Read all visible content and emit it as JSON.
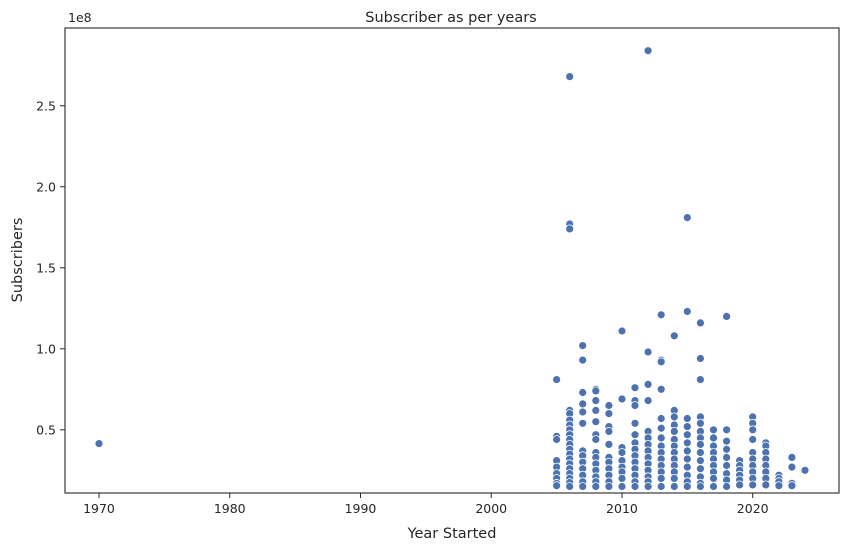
{
  "chart_data": {
    "type": "scatter",
    "title": "Subscriber as per years",
    "xlabel": "Year Started",
    "ylabel": "Subscribers",
    "y_offset_label": "1e8",
    "xlim": [
      1967.4,
      2026.6
    ],
    "ylim": [
      11000000,
      298000000
    ],
    "x_ticks": [
      1970,
      1980,
      1990,
      2000,
      2010,
      2020
    ],
    "y_ticks": [
      50000000,
      100000000,
      150000000,
      200000000,
      250000000
    ],
    "y_tick_labels": [
      "0.5",
      "1.0",
      "1.5",
      "2.0",
      "2.5"
    ],
    "grid": false,
    "marker_color": "#4c72b0",
    "marker_edge_color": "#ffffff",
    "points": [
      [
        1970,
        41500000
      ],
      [
        2005,
        81000000
      ],
      [
        2005,
        46000000
      ],
      [
        2005,
        44000000
      ],
      [
        2005,
        31000000
      ],
      [
        2005,
        27000000
      ],
      [
        2005,
        23000000
      ],
      [
        2005,
        20000000
      ],
      [
        2005,
        17000000
      ],
      [
        2005,
        15500000
      ],
      [
        2006,
        268000000
      ],
      [
        2006,
        177000000
      ],
      [
        2006,
        174000000
      ],
      [
        2006,
        62000000
      ],
      [
        2006,
        60000000
      ],
      [
        2006,
        56000000
      ],
      [
        2006,
        53000000
      ],
      [
        2006,
        50000000
      ],
      [
        2006,
        47000000
      ],
      [
        2006,
        44000000
      ],
      [
        2006,
        41000000
      ],
      [
        2006,
        38000000
      ],
      [
        2006,
        35000000
      ],
      [
        2006,
        32000000
      ],
      [
        2006,
        29000000
      ],
      [
        2006,
        26000000
      ],
      [
        2006,
        23000000
      ],
      [
        2006,
        20000000
      ],
      [
        2006,
        17500000
      ],
      [
        2006,
        15000000
      ],
      [
        2007,
        102000000
      ],
      [
        2007,
        93000000
      ],
      [
        2007,
        73000000
      ],
      [
        2007,
        66000000
      ],
      [
        2007,
        61000000
      ],
      [
        2007,
        54000000
      ],
      [
        2007,
        37000000
      ],
      [
        2007,
        34000000
      ],
      [
        2007,
        30000000
      ],
      [
        2007,
        26000000
      ],
      [
        2007,
        22000000
      ],
      [
        2007,
        18000000
      ],
      [
        2007,
        15000000
      ],
      [
        2008,
        75000000
      ],
      [
        2008,
        74000000
      ],
      [
        2008,
        68000000
      ],
      [
        2008,
        62000000
      ],
      [
        2008,
        55000000
      ],
      [
        2008,
        47000000
      ],
      [
        2008,
        44000000
      ],
      [
        2008,
        36000000
      ],
      [
        2008,
        33000000
      ],
      [
        2008,
        29000000
      ],
      [
        2008,
        25000000
      ],
      [
        2008,
        21000000
      ],
      [
        2008,
        18000000
      ],
      [
        2008,
        15000000
      ],
      [
        2009,
        65000000
      ],
      [
        2009,
        60000000
      ],
      [
        2009,
        52000000
      ],
      [
        2009,
        49000000
      ],
      [
        2009,
        41000000
      ],
      [
        2009,
        33000000
      ],
      [
        2009,
        30000000
      ],
      [
        2009,
        26000000
      ],
      [
        2009,
        22000000
      ],
      [
        2009,
        18000000
      ],
      [
        2009,
        15000000
      ],
      [
        2010,
        111000000
      ],
      [
        2010,
        69000000
      ],
      [
        2010,
        39000000
      ],
      [
        2010,
        36000000
      ],
      [
        2010,
        31000000
      ],
      [
        2010,
        27000000
      ],
      [
        2010,
        24000000
      ],
      [
        2010,
        20000000
      ],
      [
        2010,
        15000000
      ],
      [
        2011,
        76000000
      ],
      [
        2011,
        68000000
      ],
      [
        2011,
        65000000
      ],
      [
        2011,
        54000000
      ],
      [
        2011,
        47000000
      ],
      [
        2011,
        42000000
      ],
      [
        2011,
        38000000
      ],
      [
        2011,
        34000000
      ],
      [
        2011,
        30000000
      ],
      [
        2011,
        26000000
      ],
      [
        2011,
        22000000
      ],
      [
        2011,
        18000000
      ],
      [
        2011,
        15000000
      ],
      [
        2012,
        284000000
      ],
      [
        2012,
        98000000
      ],
      [
        2012,
        78000000
      ],
      [
        2012,
        68000000
      ],
      [
        2012,
        49000000
      ],
      [
        2012,
        45000000
      ],
      [
        2012,
        41000000
      ],
      [
        2012,
        37000000
      ],
      [
        2012,
        33000000
      ],
      [
        2012,
        29000000
      ],
      [
        2012,
        25000000
      ],
      [
        2012,
        21000000
      ],
      [
        2012,
        18000000
      ],
      [
        2012,
        15000000
      ],
      [
        2013,
        121000000
      ],
      [
        2013,
        93000000
      ],
      [
        2013,
        92000000
      ],
      [
        2013,
        75000000
      ],
      [
        2013,
        57000000
      ],
      [
        2013,
        51000000
      ],
      [
        2013,
        45000000
      ],
      [
        2013,
        40000000
      ],
      [
        2013,
        36000000
      ],
      [
        2013,
        32000000
      ],
      [
        2013,
        28000000
      ],
      [
        2013,
        24000000
      ],
      [
        2013,
        20000000
      ],
      [
        2013,
        15000000
      ],
      [
        2014,
        108000000
      ],
      [
        2014,
        62000000
      ],
      [
        2014,
        58000000
      ],
      [
        2014,
        53000000
      ],
      [
        2014,
        49000000
      ],
      [
        2014,
        44000000
      ],
      [
        2014,
        40000000
      ],
      [
        2014,
        36000000
      ],
      [
        2014,
        32000000
      ],
      [
        2014,
        28000000
      ],
      [
        2014,
        24000000
      ],
      [
        2014,
        20000000
      ],
      [
        2014,
        15000000
      ],
      [
        2015,
        181000000
      ],
      [
        2015,
        123000000
      ],
      [
        2015,
        57000000
      ],
      [
        2015,
        52000000
      ],
      [
        2015,
        47000000
      ],
      [
        2015,
        42000000
      ],
      [
        2015,
        37000000
      ],
      [
        2015,
        32000000
      ],
      [
        2015,
        27000000
      ],
      [
        2015,
        22000000
      ],
      [
        2015,
        18000000
      ],
      [
        2015,
        15000000
      ],
      [
        2016,
        116000000
      ],
      [
        2016,
        94000000
      ],
      [
        2016,
        81000000
      ],
      [
        2016,
        58000000
      ],
      [
        2016,
        54000000
      ],
      [
        2016,
        49000000
      ],
      [
        2016,
        45000000
      ],
      [
        2016,
        41000000
      ],
      [
        2016,
        36000000
      ],
      [
        2016,
        31000000
      ],
      [
        2016,
        26000000
      ],
      [
        2016,
        21000000
      ],
      [
        2016,
        17000000
      ],
      [
        2016,
        15000000
      ],
      [
        2017,
        50000000
      ],
      [
        2017,
        45000000
      ],
      [
        2017,
        40000000
      ],
      [
        2017,
        36000000
      ],
      [
        2017,
        32000000
      ],
      [
        2017,
        28000000
      ],
      [
        2017,
        24000000
      ],
      [
        2017,
        20000000
      ],
      [
        2017,
        15000000
      ],
      [
        2018,
        120000000
      ],
      [
        2018,
        50000000
      ],
      [
        2018,
        43000000
      ],
      [
        2018,
        38000000
      ],
      [
        2018,
        33000000
      ],
      [
        2018,
        28000000
      ],
      [
        2018,
        23000000
      ],
      [
        2018,
        19000000
      ],
      [
        2018,
        15000000
      ],
      [
        2019,
        31000000
      ],
      [
        2019,
        28000000
      ],
      [
        2019,
        25000000
      ],
      [
        2019,
        22000000
      ],
      [
        2019,
        19000000
      ],
      [
        2019,
        16000000
      ],
      [
        2020,
        58000000
      ],
      [
        2020,
        54000000
      ],
      [
        2020,
        50000000
      ],
      [
        2020,
        44000000
      ],
      [
        2020,
        36000000
      ],
      [
        2020,
        32000000
      ],
      [
        2020,
        28000000
      ],
      [
        2020,
        24000000
      ],
      [
        2020,
        20000000
      ],
      [
        2020,
        16000000
      ],
      [
        2021,
        42000000
      ],
      [
        2021,
        40000000
      ],
      [
        2021,
        36000000
      ],
      [
        2021,
        32000000
      ],
      [
        2021,
        28000000
      ],
      [
        2021,
        24000000
      ],
      [
        2021,
        20000000
      ],
      [
        2021,
        16000000
      ],
      [
        2022,
        22000000
      ],
      [
        2022,
        20000000
      ],
      [
        2022,
        18000000
      ],
      [
        2022,
        15500000
      ],
      [
        2023,
        33000000
      ],
      [
        2023,
        27000000
      ],
      [
        2023,
        17000000
      ],
      [
        2023,
        15500000
      ],
      [
        2024,
        25000000
      ]
    ]
  }
}
